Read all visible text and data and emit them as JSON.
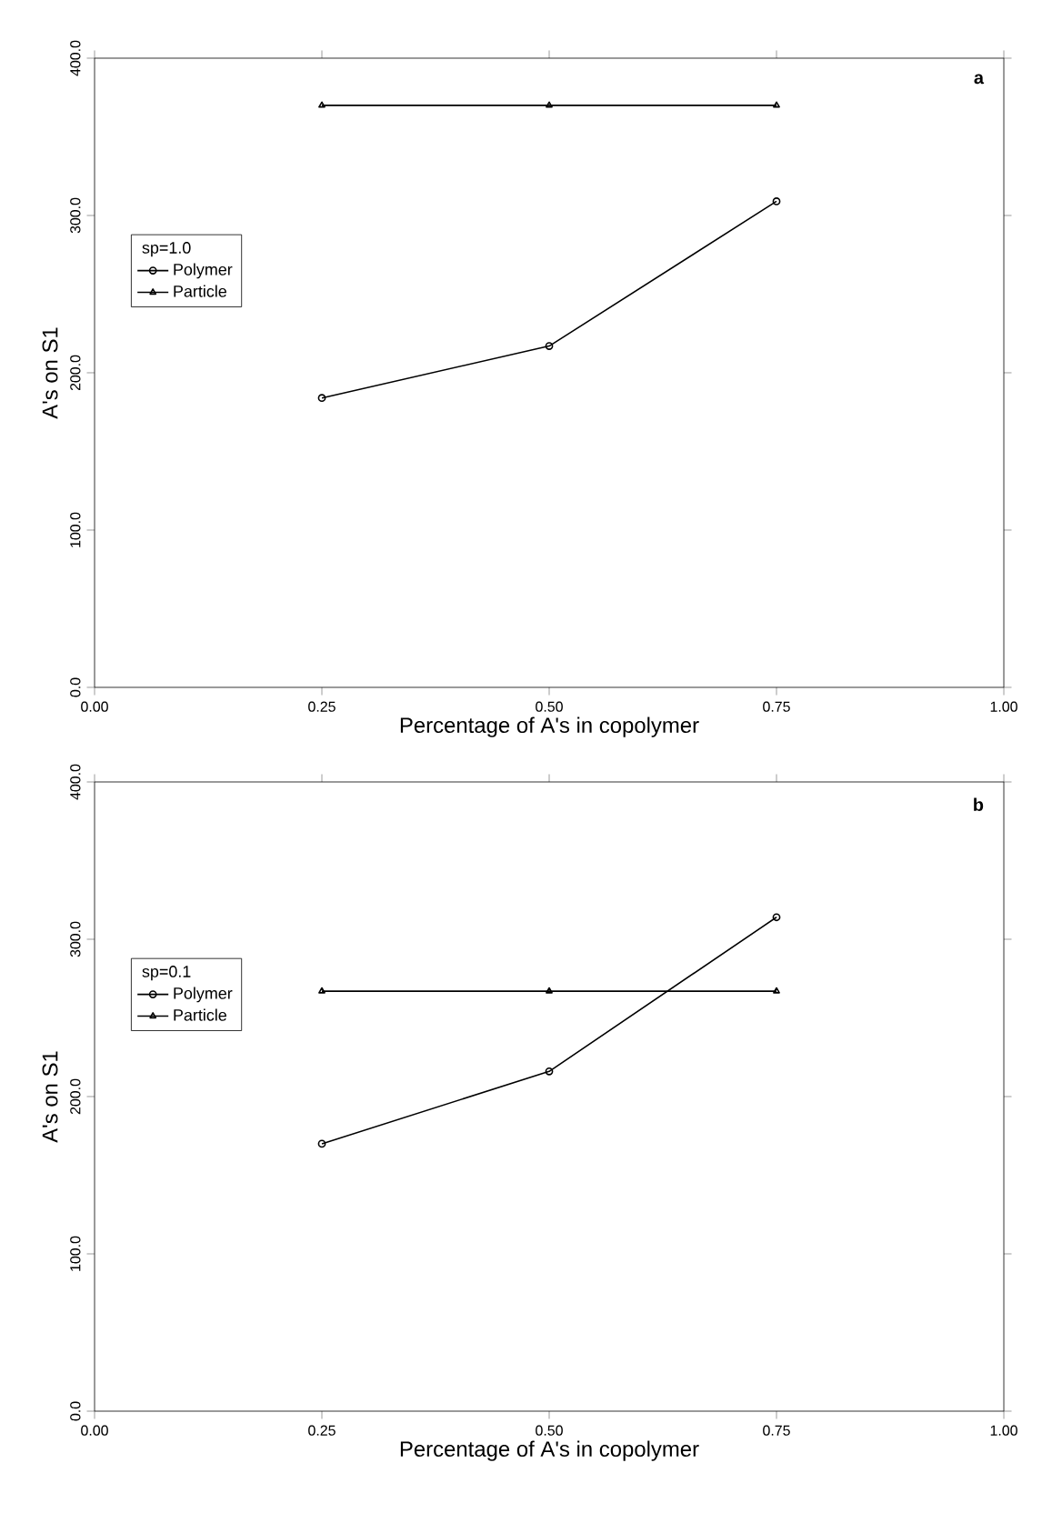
{
  "chart_data": [
    {
      "type": "line",
      "xlabel": "Percentage of A's in copolymer",
      "ylabel": "A's on S1",
      "legend_title": "sp=1.0",
      "annotations": [
        "a"
      ],
      "x": [
        0.25,
        0.5,
        0.75
      ],
      "series": [
        {
          "name": "Polymer",
          "color": "#000000",
          "marker": "circle",
          "values": [
            184,
            217,
            309
          ]
        },
        {
          "name": "Particle",
          "color": "#000000",
          "marker": "triangle",
          "values": [
            370,
            370,
            370
          ]
        }
      ],
      "xlim": [
        0,
        1
      ],
      "ylim": [
        0,
        400
      ],
      "xticks": [
        {
          "value": 0,
          "label": "0.00"
        },
        {
          "value": 0.25,
          "label": "0.25"
        },
        {
          "value": 0.5,
          "label": "0.50"
        },
        {
          "value": 0.75,
          "label": "0.75"
        },
        {
          "value": 1,
          "label": "1.00"
        }
      ],
      "yticks": [
        {
          "value": 0,
          "label": "0.0"
        },
        {
          "value": 100,
          "label": "100.0"
        },
        {
          "value": 200,
          "label": "200.0"
        },
        {
          "value": 300,
          "label": "300.0"
        },
        {
          "value": 400,
          "label": "400.0"
        }
      ],
      "legend": "top left",
      "line_style": "solid"
    },
    {
      "type": "line",
      "xlabel": "Percentage of A's in copolymer",
      "ylabel": "A's on S1",
      "legend_title": "sp=0.1",
      "annotations": [
        "b"
      ],
      "x": [
        0.25,
        0.5,
        0.75
      ],
      "series": [
        {
          "name": "Polymer",
          "color": "#000000",
          "marker": "circle",
          "values": [
            170,
            216,
            314
          ]
        },
        {
          "name": "Particle",
          "color": "#000000",
          "marker": "triangle",
          "values": [
            267,
            267,
            267
          ]
        }
      ],
      "xlim": [
        0,
        1
      ],
      "ylim": [
        0,
        400
      ],
      "xticks": [
        {
          "value": 0,
          "label": "0.00"
        },
        {
          "value": 0.25,
          "label": "0.25"
        },
        {
          "value": 0.5,
          "label": "0.50"
        },
        {
          "value": 0.75,
          "label": "0.75"
        },
        {
          "value": 1,
          "label": "1.00"
        }
      ],
      "yticks": [
        {
          "value": 0,
          "label": "0.0"
        },
        {
          "value": 100,
          "label": "100.0"
        },
        {
          "value": 200,
          "label": "200.0"
        },
        {
          "value": 300,
          "label": "300.0"
        },
        {
          "value": 400,
          "label": "400.0"
        }
      ],
      "legend": "top left",
      "line_style": "solid"
    }
  ]
}
